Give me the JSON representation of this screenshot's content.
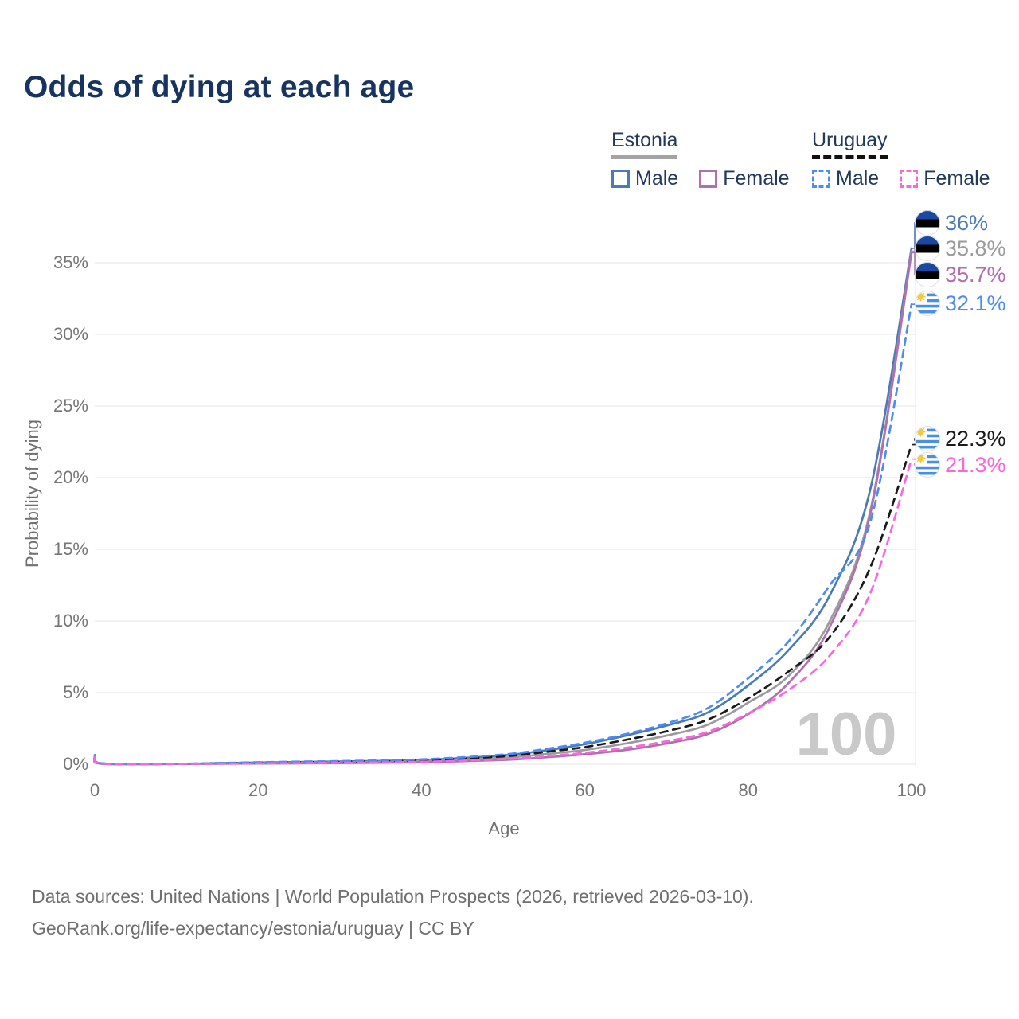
{
  "title": "Odds of dying at each age",
  "watermark": "100",
  "legend": {
    "groups": [
      {
        "country": "Estonia",
        "line_style": "solid",
        "underline_color": "#a3a3a3",
        "items": [
          {
            "label": "Male",
            "color": "#4a7ab8"
          },
          {
            "label": "Female",
            "color": "#b06fae"
          }
        ]
      },
      {
        "country": "Uruguay",
        "line_style": "dashed",
        "underline_color": "#111111",
        "items": [
          {
            "label": "Male",
            "color": "#4d8cf5"
          },
          {
            "label": "Female",
            "color": "#f966dd"
          }
        ]
      }
    ]
  },
  "footer": {
    "line1": "Data sources: United Nations | World Population Prospects (2026, retrieved 2026-03-10).",
    "line2": "GeoRank.org/life-expectancy/estonia/uruguay | CC BY"
  },
  "chart_data": {
    "type": "line",
    "title": "Odds of dying at each age",
    "xlabel": "Age",
    "ylabel": "Probability of dying",
    "xlim": [
      0,
      100
    ],
    "ylim": [
      0,
      36
    ],
    "grid": "horizontal",
    "legend_position": "top-right",
    "x_ticks": [
      0,
      20,
      40,
      60,
      80,
      100
    ],
    "y_ticks": [
      {
        "value": 0,
        "label": "0%"
      },
      {
        "value": 5,
        "label": "5%"
      },
      {
        "value": 10,
        "label": "10%"
      },
      {
        "value": 15,
        "label": "15%"
      },
      {
        "value": 20,
        "label": "20%"
      },
      {
        "value": 25,
        "label": "25%"
      },
      {
        "value": 30,
        "label": "30%"
      },
      {
        "value": 35,
        "label": "35%"
      }
    ],
    "x": [
      0,
      1,
      10,
      20,
      30,
      40,
      50,
      55,
      60,
      65,
      70,
      75,
      80,
      85,
      90,
      95,
      100
    ],
    "series": [
      {
        "name": "Estonia Male",
        "country": "Estonia",
        "flag": "estonia-flag",
        "color": "#4a7ab8",
        "dash": false,
        "end_label": "36%",
        "values": [
          0.45,
          0.05,
          0.03,
          0.12,
          0.19,
          0.3,
          0.62,
          0.95,
          1.4,
          2.0,
          2.7,
          3.6,
          5.5,
          8.0,
          11.8,
          19.3,
          36.0
        ]
      },
      {
        "name": "Estonia Total",
        "country": "Estonia",
        "flag": "estonia-flag",
        "color": "#9b9b9b",
        "dash": false,
        "end_label": "35.8%",
        "values": [
          0.4,
          0.04,
          0.02,
          0.08,
          0.13,
          0.22,
          0.45,
          0.7,
          1.0,
          1.45,
          2.0,
          2.75,
          4.3,
          6.2,
          10.0,
          17.8,
          35.8
        ]
      },
      {
        "name": "Estonia Female",
        "country": "Estonia",
        "flag": "estonia-flag",
        "color": "#b06fae",
        "dash": false,
        "end_label": "35.7%",
        "values": [
          0.35,
          0.03,
          0.02,
          0.05,
          0.08,
          0.14,
          0.3,
          0.48,
          0.7,
          1.0,
          1.45,
          2.1,
          3.5,
          5.7,
          9.6,
          17.6,
          35.7
        ]
      },
      {
        "name": "Uruguay Total",
        "country": "Uruguay",
        "flag": "uruguay-flag",
        "color": "#1a1a1a",
        "dash": true,
        "end_label": "22.3%",
        "values": [
          0.55,
          0.05,
          0.03,
          0.1,
          0.17,
          0.27,
          0.55,
          0.85,
          1.2,
          1.7,
          2.3,
          3.1,
          4.6,
          6.5,
          8.9,
          13.8,
          22.3
        ]
      },
      {
        "name": "Uruguay Male",
        "country": "Uruguay",
        "flag": "uruguay-flag",
        "color": "#4d8cf5",
        "dash": true,
        "end_label": "32.1%",
        "values": [
          0.65,
          0.05,
          0.03,
          0.14,
          0.22,
          0.34,
          0.68,
          1.05,
          1.5,
          2.1,
          2.85,
          3.9,
          6.0,
          8.6,
          12.5,
          17.0,
          32.1
        ]
      },
      {
        "name": "Uruguay Female",
        "country": "Uruguay",
        "flag": "uruguay-flag",
        "color": "#f966dd",
        "dash": true,
        "end_label": "21.3%",
        "values": [
          0.48,
          0.04,
          0.02,
          0.06,
          0.1,
          0.17,
          0.35,
          0.55,
          0.8,
          1.15,
          1.6,
          2.25,
          3.55,
          5.2,
          7.6,
          12.0,
          21.3
        ]
      }
    ]
  }
}
